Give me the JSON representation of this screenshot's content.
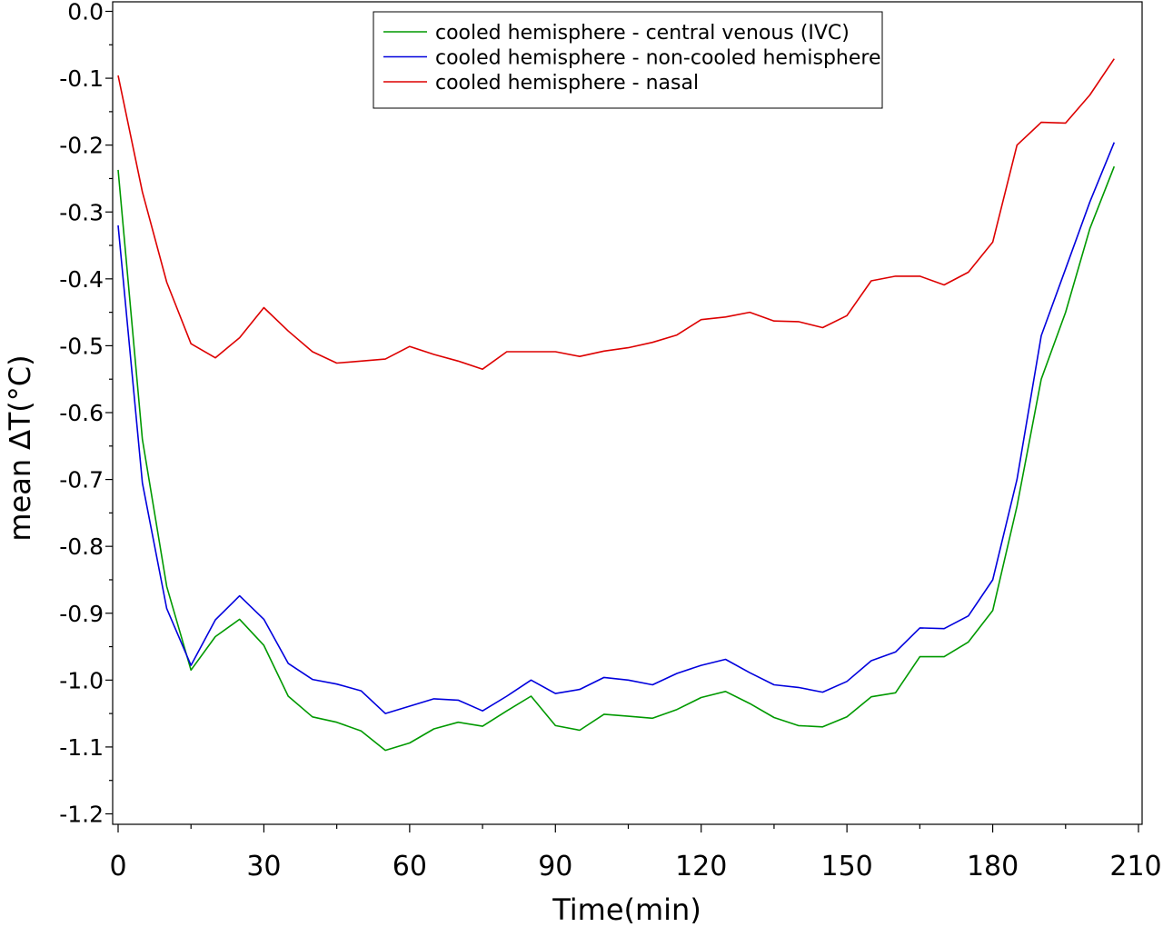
{
  "chart_data": {
    "type": "line",
    "title": "",
    "xlabel": "Time(min)",
    "ylabel": "mean ∆T(°C)",
    "xlim": [
      0,
      210
    ],
    "ylim": [
      -1.2,
      0.0
    ],
    "xticks": [
      0,
      30,
      60,
      90,
      120,
      150,
      180,
      210
    ],
    "yticks": [
      0.0,
      -0.1,
      -0.2,
      -0.3,
      -0.4,
      -0.5,
      -0.6,
      -0.7,
      -0.8,
      -0.9,
      -1.0,
      -1.1,
      -1.2
    ],
    "ytick_labels": [
      "0.0",
      "-0.1",
      "-0.2",
      "-0.3",
      "-0.4",
      "-0.5",
      "-0.6",
      "-0.7",
      "-0.8",
      "-0.9",
      "-1.0",
      "-1.1",
      "-1.2"
    ],
    "grid": false,
    "legend_position": "top-center",
    "x": [
      0,
      5,
      10,
      15,
      20,
      25,
      30,
      35,
      40,
      45,
      50,
      55,
      60,
      65,
      70,
      75,
      80,
      85,
      90,
      95,
      100,
      105,
      110,
      115,
      120,
      125,
      130,
      135,
      140,
      145,
      150,
      155,
      160,
      165,
      170,
      175,
      180,
      185,
      190,
      195,
      200,
      205
    ],
    "series": [
      {
        "name": "cooled hemisphere - central venous (IVC)",
        "color": "#009900",
        "values": [
          -0.237,
          -0.64,
          -0.86,
          -0.985,
          -0.935,
          -0.909,
          -0.948,
          -1.024,
          -1.055,
          -1.063,
          -1.076,
          -1.105,
          -1.094,
          -1.073,
          -1.063,
          -1.069,
          -1.046,
          -1.024,
          -1.068,
          -1.075,
          -1.051,
          -1.054,
          -1.057,
          -1.044,
          -1.026,
          -1.017,
          -1.035,
          -1.056,
          -1.068,
          -1.07,
          -1.055,
          -1.025,
          -1.019,
          -0.965,
          -0.965,
          -0.943,
          -0.896,
          -0.74,
          -0.55,
          -0.45,
          -0.325,
          -0.232
        ]
      },
      {
        "name": "cooled hemisphere - non-cooled hemisphere",
        "color": "#0000dd",
        "values": [
          -0.32,
          -0.705,
          -0.893,
          -0.978,
          -0.91,
          -0.874,
          -0.909,
          -0.975,
          -0.999,
          -1.006,
          -1.016,
          -1.05,
          -1.039,
          -1.028,
          -1.03,
          -1.046,
          -1.024,
          -1.0,
          -1.02,
          -1.014,
          -0.996,
          -1.0,
          -1.007,
          -0.99,
          -0.978,
          -0.969,
          -0.989,
          -1.007,
          -1.011,
          -1.018,
          -1.002,
          -0.971,
          -0.958,
          -0.922,
          -0.923,
          -0.904,
          -0.85,
          -0.7,
          -0.485,
          -0.385,
          -0.285,
          -0.196
        ]
      },
      {
        "name": "cooled hemisphere - nasal",
        "color": "#dd0000",
        "values": [
          -0.096,
          -0.27,
          -0.405,
          -0.497,
          -0.518,
          -0.488,
          -0.443,
          -0.478,
          -0.509,
          -0.526,
          -0.523,
          -0.52,
          -0.501,
          -0.513,
          -0.523,
          -0.535,
          -0.509,
          -0.509,
          -0.509,
          -0.516,
          -0.508,
          -0.503,
          -0.495,
          -0.484,
          -0.461,
          -0.457,
          -0.45,
          -0.463,
          -0.464,
          -0.473,
          -0.455,
          -0.403,
          -0.396,
          -0.396,
          -0.409,
          -0.39,
          -0.345,
          -0.2,
          -0.166,
          -0.167,
          -0.125,
          -0.071
        ]
      }
    ]
  }
}
